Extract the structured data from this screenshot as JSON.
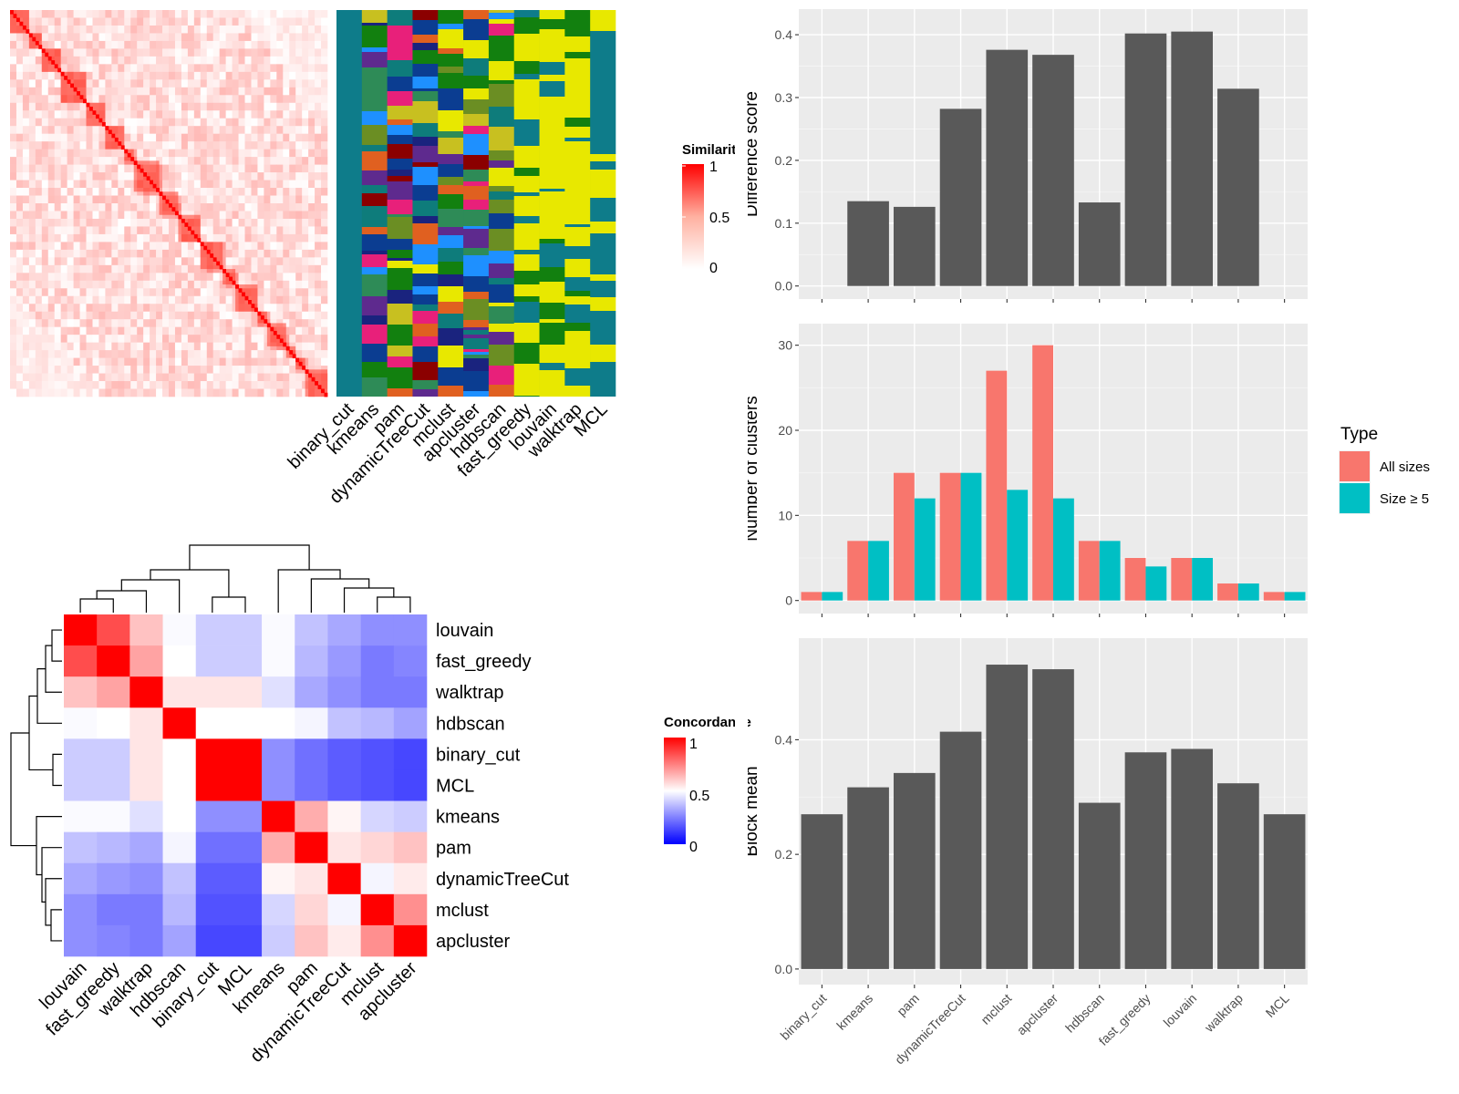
{
  "methods": [
    "binary_cut",
    "kmeans",
    "pam",
    "dynamicTreeCut",
    "mclust",
    "apcluster",
    "hdbscan",
    "fast_greedy",
    "louvain",
    "walktrap",
    "MCL"
  ],
  "similarity_heatmap": {
    "legend_title": "Similarity",
    "legend_ticks": [
      "1",
      "0.5",
      "0"
    ],
    "n_terms": 100
  },
  "cluster_assignment_panel": {
    "columns": [
      "binary_cut",
      "kmeans",
      "pam",
      "dynamicTreeCut",
      "mclust",
      "apcluster",
      "hdbscan",
      "fast_greedy",
      "louvain",
      "walktrap",
      "MCL"
    ]
  },
  "concordance_heatmap": {
    "legend_title": "Concordance",
    "legend_ticks": [
      "1",
      "0.5",
      "0"
    ],
    "order": [
      "louvain",
      "fast_greedy",
      "walktrap",
      "hdbscan",
      "binary_cut",
      "MCL",
      "kmeans",
      "pam",
      "dynamicTreeCut",
      "mclust",
      "apcluster"
    ]
  },
  "chart_data": [
    {
      "type": "bar",
      "ylabel": "Difference score",
      "categories": [
        "binary_cut",
        "kmeans",
        "pam",
        "dynamicTreeCut",
        "mclust",
        "apcluster",
        "hdbscan",
        "fast_greedy",
        "louvain",
        "walktrap",
        "MCL"
      ],
      "values": [
        0,
        0.135,
        0.126,
        0.282,
        0.376,
        0.368,
        0.133,
        0.402,
        0.405,
        0.314,
        0
      ],
      "ylim": [
        0,
        0.42
      ],
      "yticks": [
        "0.0",
        "0.1",
        "0.2",
        "0.3",
        "0.4"
      ],
      "bar_color": "#595959"
    },
    {
      "type": "bar",
      "ylabel": "Number of clusters",
      "categories": [
        "binary_cut",
        "kmeans",
        "pam",
        "dynamicTreeCut",
        "mclust",
        "apcluster",
        "hdbscan",
        "fast_greedy",
        "louvain",
        "walktrap",
        "MCL"
      ],
      "series": [
        {
          "name": "All sizes",
          "values": [
            1,
            7,
            15,
            15,
            27,
            30,
            7,
            5,
            5,
            2,
            1
          ],
          "color": "#F8766D"
        },
        {
          "name": "Size ≥ 5",
          "values": [
            1,
            7,
            12,
            15,
            13,
            12,
            7,
            4,
            5,
            2,
            1
          ],
          "color": "#00BFC4"
        }
      ],
      "legend_title": "Type",
      "legend_position": "right",
      "ylim": [
        0,
        31
      ],
      "yticks": [
        "0",
        "10",
        "20",
        "30"
      ]
    },
    {
      "type": "bar",
      "ylabel": "Block mean",
      "categories": [
        "binary_cut",
        "kmeans",
        "pam",
        "dynamicTreeCut",
        "mclust",
        "apcluster",
        "hdbscan",
        "fast_greedy",
        "louvain",
        "walktrap",
        "MCL"
      ],
      "values": [
        0.27,
        0.317,
        0.342,
        0.414,
        0.531,
        0.523,
        0.29,
        0.378,
        0.384,
        0.324,
        0.27
      ],
      "ylim": [
        0,
        0.55
      ],
      "yticks": [
        "0.0",
        "0.2",
        "0.4"
      ],
      "bar_color": "#595959"
    }
  ]
}
